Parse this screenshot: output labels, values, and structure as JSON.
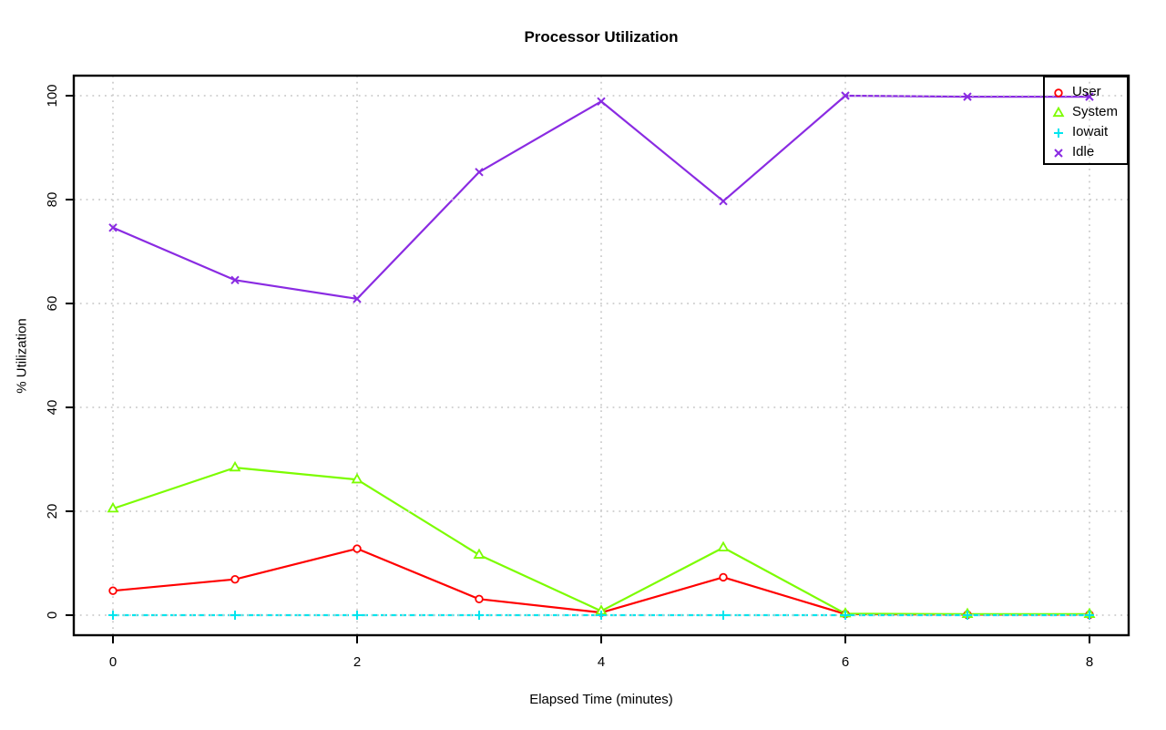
{
  "window": {
    "background": "#ffffff"
  },
  "chart_data": {
    "type": "line",
    "title": "Processor Utilization",
    "xlabel": "Elapsed Time (minutes)",
    "ylabel": "% Utilization",
    "x": [
      0,
      1,
      2,
      3,
      4,
      5,
      6,
      7,
      8
    ],
    "xlim": [
      0,
      8
    ],
    "ylim": [
      0,
      100
    ],
    "xticks": [
      0,
      2,
      4,
      6,
      8
    ],
    "yticks": [
      0,
      20,
      40,
      60,
      80,
      100
    ],
    "grid": true,
    "grid_style": "dotted",
    "grid_color": "#cdcdcd",
    "axis_color": "#000000",
    "legend_position": "top-right",
    "series": [
      {
        "name": "User",
        "color": "#ff0000",
        "marker": "circle",
        "line": "solid",
        "values": [
          4.7,
          6.9,
          12.8,
          3.1,
          0.5,
          7.3,
          0.2,
          0.1,
          0.1
        ]
      },
      {
        "name": "System",
        "color": "#7cfc00",
        "marker": "triangle",
        "line": "solid",
        "values": [
          20.5,
          28.4,
          26.1,
          11.6,
          0.8,
          13.0,
          0.3,
          0.2,
          0.2
        ]
      },
      {
        "name": "Iowait",
        "color": "#00e5ee",
        "marker": "plus",
        "line": "dashed",
        "values": [
          0,
          0,
          0,
          0,
          0,
          0,
          0,
          0,
          0
        ]
      },
      {
        "name": "Idle",
        "color": "#8a2be2",
        "marker": "x",
        "line": "solid",
        "values": [
          74.6,
          64.5,
          60.9,
          85.3,
          98.9,
          79.7,
          100.0,
          99.8,
          99.8
        ]
      }
    ]
  }
}
